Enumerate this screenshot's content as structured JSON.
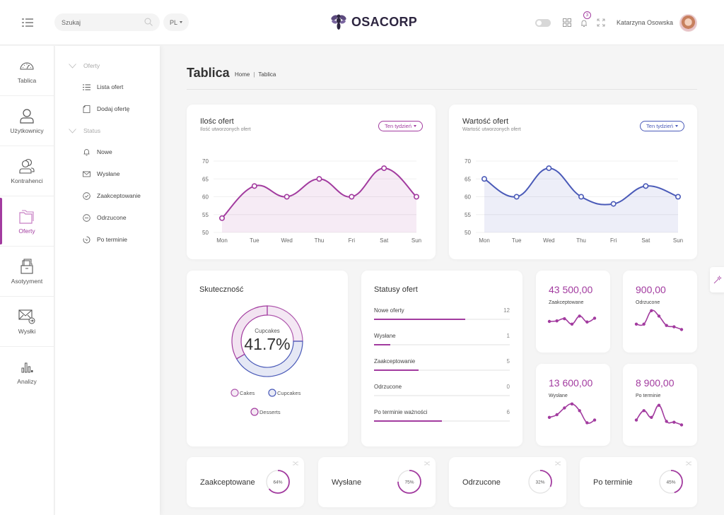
{
  "header": {
    "search_placeholder": "Szukaj",
    "language": "PL",
    "brand": "OSACORP",
    "notifications_count": "3",
    "user_name": "Katarzyna Osowska"
  },
  "colors": {
    "accent": "#a23b9f",
    "secondary": "#4a5ab8",
    "background": "#f5f5f5"
  },
  "rail": {
    "items": [
      {
        "label": "Tablica",
        "icon": "dashboard-gauge-icon",
        "active": false
      },
      {
        "label": "Użytkownicy",
        "icon": "user-icon",
        "active": false
      },
      {
        "label": "Kontrahenci",
        "icon": "users-icon",
        "active": false
      },
      {
        "label": "Oferty",
        "icon": "folder-icon",
        "active": true
      },
      {
        "label": "Asotyyment",
        "icon": "archive-box-icon",
        "active": false
      },
      {
        "label": "Wysłki",
        "icon": "mail-send-icon",
        "active": false
      },
      {
        "label": "Analizy",
        "icon": "bar-chart-icon",
        "active": false
      }
    ]
  },
  "submenu": {
    "groups": [
      {
        "label": "Oferty",
        "items": [
          {
            "label": "Lista ofert",
            "icon": "list-icon"
          },
          {
            "label": "Dodaj ofertę",
            "icon": "document-add-icon"
          }
        ]
      },
      {
        "label": "Status",
        "items": [
          {
            "label": "Nowe",
            "icon": "bell-icon"
          },
          {
            "label": "Wysłane",
            "icon": "envelope-icon"
          },
          {
            "label": "Zaakceptowanie",
            "icon": "check-circle-icon"
          },
          {
            "label": "Odrzucone",
            "icon": "minus-circle-icon"
          },
          {
            "label": "Po terminie",
            "icon": "timer-icon"
          }
        ]
      }
    ]
  },
  "page": {
    "title": "Tablica",
    "breadcrumb": [
      "Home",
      "Tablica"
    ]
  },
  "charts": {
    "count": {
      "title": "Ilośc ofert",
      "subtitle": "Ilość utworzonych ofert",
      "period": "Ten tydzień"
    },
    "value": {
      "title": "Wartość ofert",
      "subtitle": "Wartość utworzonych ofert",
      "period": "Ten tydzień"
    }
  },
  "chart_data": [
    {
      "type": "area",
      "title": "Ilośc ofert",
      "subtitle": "Ilość utworzonych ofert",
      "categories": [
        "Mon",
        "Tue",
        "Wed",
        "Thu",
        "Fri",
        "Sat",
        "Sun"
      ],
      "series": [
        {
          "name": "Ilość ofert",
          "values": [
            54,
            63,
            60,
            65,
            60,
            68,
            60
          ],
          "color": "#a23b9f"
        }
      ],
      "yticks": [
        50,
        55,
        60,
        65,
        70
      ],
      "ylim": [
        50,
        70
      ],
      "grid": true
    },
    {
      "type": "area",
      "title": "Wartość ofert",
      "subtitle": "Wartość utworzonych ofert",
      "categories": [
        "Mon",
        "Tue",
        "Wed",
        "Thu",
        "Fri",
        "Sat",
        "Sun"
      ],
      "series": [
        {
          "name": "Wartość ofert",
          "values": [
            65,
            60,
            68,
            60,
            58,
            63,
            60
          ],
          "color": "#4a5ab8"
        }
      ],
      "yticks": [
        50,
        55,
        60,
        65,
        70
      ],
      "ylim": [
        50,
        70
      ],
      "grid": true
    },
    {
      "type": "pie",
      "title": "Skuteczność",
      "center_label": "Cupcakes",
      "center_value": "41.7%",
      "slices": [
        {
          "name": "Cakes",
          "value": 25.0,
          "color": "#b05aae"
        },
        {
          "name": "Cupcakes",
          "value": 41.7,
          "color": "#4a5ab8"
        },
        {
          "name": "Desserts",
          "value": 33.3,
          "color": "#a23b9f"
        }
      ],
      "legend": "bottom"
    }
  ],
  "statuses": {
    "title": "Statusy ofert",
    "rows": [
      {
        "label": "Nowe oferty",
        "value": "12",
        "fill": 0.67
      },
      {
        "label": "Wysłane",
        "value": "1",
        "fill": 0.12
      },
      {
        "label": "Zaakceptowanie",
        "value": "5",
        "fill": 0.33
      },
      {
        "label": "Odrzucone",
        "value": "0",
        "fill": 0
      },
      {
        "label": "Po terminie ważności",
        "value": "6",
        "fill": 0.5
      }
    ]
  },
  "sparks": [
    {
      "amount": "43 500,00",
      "label": "Zaakceptowane",
      "values": [
        5,
        5.2,
        6,
        4,
        7,
        4.8,
        6.2
      ]
    },
    {
      "amount": "900,00",
      "label": "Odrzucone",
      "values": [
        4,
        4,
        9,
        7,
        3.5,
        3,
        2
      ]
    },
    {
      "amount": "13 600,00",
      "label": "Wysłane",
      "values": [
        4,
        5,
        7.5,
        9,
        6.5,
        2,
        3
      ]
    },
    {
      "amount": "8 900,00",
      "label": "Po terminie",
      "values": [
        3,
        6.5,
        4,
        8.5,
        2.5,
        2.2,
        1.2
      ]
    }
  ],
  "kpis": [
    {
      "label": "Zaakceptowane",
      "percent": 64,
      "text": "64%"
    },
    {
      "label": "Wysłane",
      "percent": 75,
      "text": "75%"
    },
    {
      "label": "Odrzucone",
      "percent": 32,
      "text": "32%"
    },
    {
      "label": "Po terminie",
      "percent": 45,
      "text": "45%"
    }
  ]
}
